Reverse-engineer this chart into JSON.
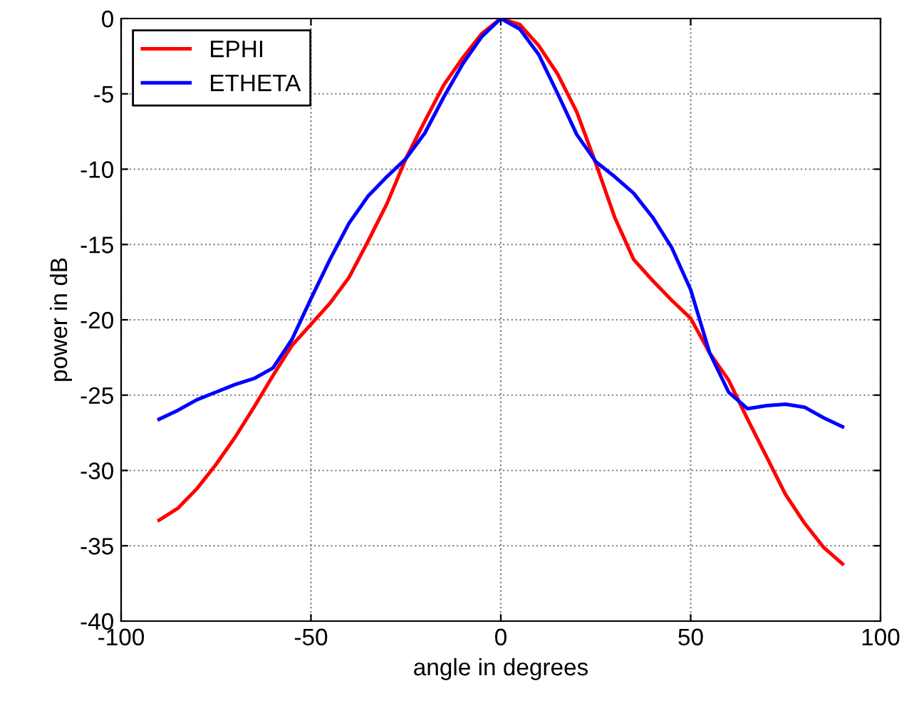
{
  "chart_data": {
    "type": "line",
    "xlabel": "angle in degrees",
    "ylabel": "power in dB",
    "x": [
      -90,
      -85,
      -80,
      -75,
      -70,
      -65,
      -60,
      -55,
      -50,
      -45,
      -40,
      -35,
      -30,
      -25,
      -20,
      -15,
      -10,
      -5,
      0,
      5,
      10,
      15,
      20,
      25,
      30,
      35,
      40,
      45,
      50,
      55,
      60,
      65,
      70,
      75,
      80,
      85,
      90
    ],
    "series": [
      {
        "name": "EPHI",
        "color": "#ff0000",
        "values": [
          -33.3,
          -32.5,
          -31.2,
          -29.6,
          -27.8,
          -25.8,
          -23.7,
          -21.7,
          -20.3,
          -18.9,
          -17.2,
          -14.8,
          -12.3,
          -9.3,
          -6.8,
          -4.4,
          -2.6,
          -1.0,
          0,
          -0.4,
          -1.8,
          -3.7,
          -6.2,
          -9.6,
          -13.2,
          -16.0,
          -17.4,
          -18.7,
          -19.9,
          -22.2,
          -24.0,
          -26.6,
          -29.1,
          -31.6,
          -33.5,
          -35.1,
          -36.2
        ]
      },
      {
        "name": "ETHETA",
        "color": "#0000ff",
        "values": [
          -26.6,
          -26.0,
          -25.3,
          -24.8,
          -24.3,
          -23.9,
          -23.2,
          -21.3,
          -18.6,
          -16.0,
          -13.6,
          -11.8,
          -10.5,
          -9.3,
          -7.6,
          -5.2,
          -3.0,
          -1.2,
          0,
          -0.7,
          -2.4,
          -5.0,
          -7.7,
          -9.5,
          -10.5,
          -11.6,
          -13.2,
          -15.2,
          -18.0,
          -22.2,
          -24.8,
          -25.9,
          -25.7,
          -25.6,
          -25.8,
          -26.5,
          -27.1
        ]
      }
    ],
    "xlim": [
      -100,
      100
    ],
    "xticks": [
      -100,
      -50,
      0,
      50,
      100
    ],
    "ylim": [
      -40,
      0
    ],
    "yticks": [
      -40,
      -35,
      -30,
      -25,
      -20,
      -15,
      -10,
      -5,
      0
    ],
    "grid": true,
    "legend": "top left",
    "marker": "none",
    "line_style": "solid"
  }
}
